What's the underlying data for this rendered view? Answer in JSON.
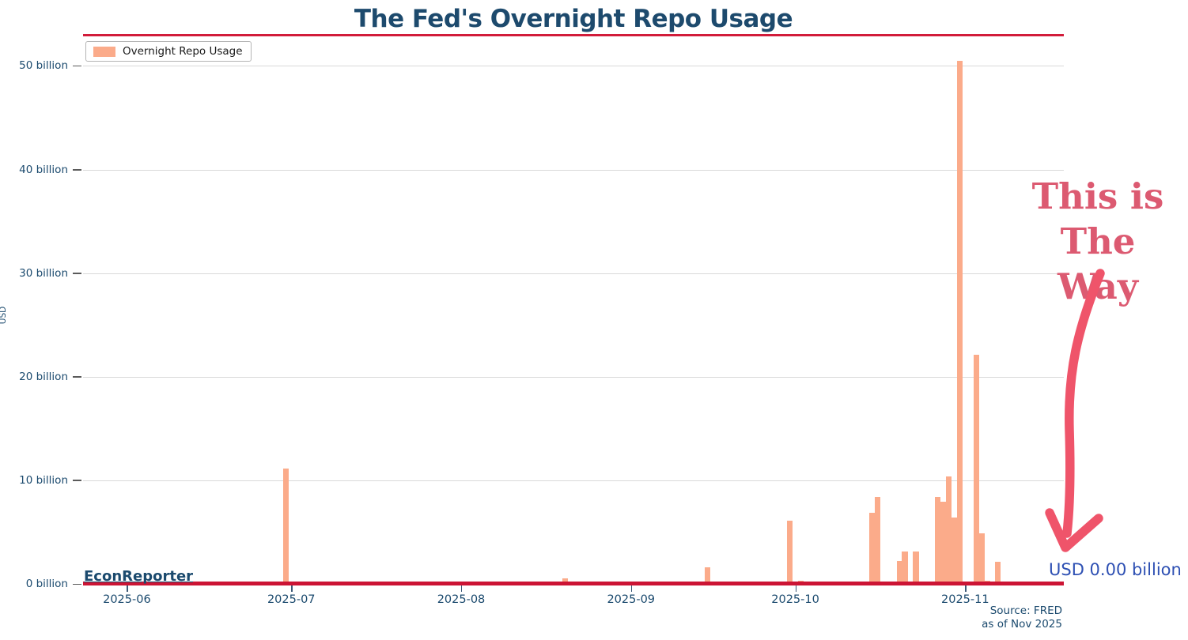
{
  "page": {
    "title": "The Fed's Overnight Repo Usage",
    "watermark": "EconReporter",
    "source_line1": "Source: FRED",
    "source_line2": "as of Nov 2025"
  },
  "legend": {
    "label": "Overnight Repo Usage"
  },
  "annotations": {
    "callout_line1": "This is",
    "callout_line2": "The Way",
    "latest_value": "USD 0.00 billion"
  },
  "colors": {
    "bar": "#fbab8a",
    "zero_line": "#cc1434",
    "title_rule": "#d21c3a",
    "navy_text": "#1b4a6e",
    "callout_rose": "#dc5a71",
    "arrow_rose": "#ef546a",
    "annotation_blue": "#2e50b3",
    "gridline": "#d9d9d9"
  },
  "chart_data": {
    "type": "bar",
    "title": "The Fed's Overnight Repo Usage",
    "series_name": "Overnight Repo Usage",
    "xlabel": "",
    "ylabel": "USD",
    "unit": "USD billions",
    "grid": "horizontal",
    "legend_position": "upper-left",
    "x_domain": [
      "2025-05-24",
      "2025-11-19"
    ],
    "ylim": [
      0,
      52.7
    ],
    "y_ticks": [
      {
        "value": 0,
        "label": "0 billion"
      },
      {
        "value": 10,
        "label": "10 billion"
      },
      {
        "value": 20,
        "label": "20 billion"
      },
      {
        "value": 30,
        "label": "30 billion"
      },
      {
        "value": 40,
        "label": "40 billion"
      },
      {
        "value": 50,
        "label": "50 billion"
      }
    ],
    "x_ticks": [
      {
        "date": "2025-06-01",
        "label": "2025-06"
      },
      {
        "date": "2025-07-01",
        "label": "2025-07"
      },
      {
        "date": "2025-08-01",
        "label": "2025-08"
      },
      {
        "date": "2025-09-01",
        "label": "2025-09"
      },
      {
        "date": "2025-10-01",
        "label": "2025-10"
      },
      {
        "date": "2025-11-01",
        "label": "2025-11"
      }
    ],
    "bars": [
      {
        "date": "2025-06-30",
        "value": 11.1
      },
      {
        "date": "2025-07-08",
        "value": 0.25
      },
      {
        "date": "2025-08-11",
        "value": 0.25
      },
      {
        "date": "2025-08-20",
        "value": 0.5
      },
      {
        "date": "2025-09-09",
        "value": 0.25
      },
      {
        "date": "2025-09-15",
        "value": 1.6
      },
      {
        "date": "2025-09-30",
        "value": 6.1
      },
      {
        "date": "2025-10-02",
        "value": 0.3
      },
      {
        "date": "2025-10-07",
        "value": 0.25
      },
      {
        "date": "2025-10-15",
        "value": 6.9
      },
      {
        "date": "2025-10-16",
        "value": 8.4
      },
      {
        "date": "2025-10-20",
        "value": 2.2
      },
      {
        "date": "2025-10-21",
        "value": 3.1
      },
      {
        "date": "2025-10-23",
        "value": 3.1
      },
      {
        "date": "2025-10-27",
        "value": 8.4
      },
      {
        "date": "2025-10-28",
        "value": 7.9
      },
      {
        "date": "2025-10-29",
        "value": 10.4
      },
      {
        "date": "2025-10-30",
        "value": 6.4
      },
      {
        "date": "2025-10-31",
        "value": 50.5
      },
      {
        "date": "2025-11-03",
        "value": 22.1
      },
      {
        "date": "2025-11-04",
        "value": 4.9
      },
      {
        "date": "2025-11-05",
        "value": 0.3
      },
      {
        "date": "2025-11-07",
        "value": 2.1
      }
    ]
  }
}
